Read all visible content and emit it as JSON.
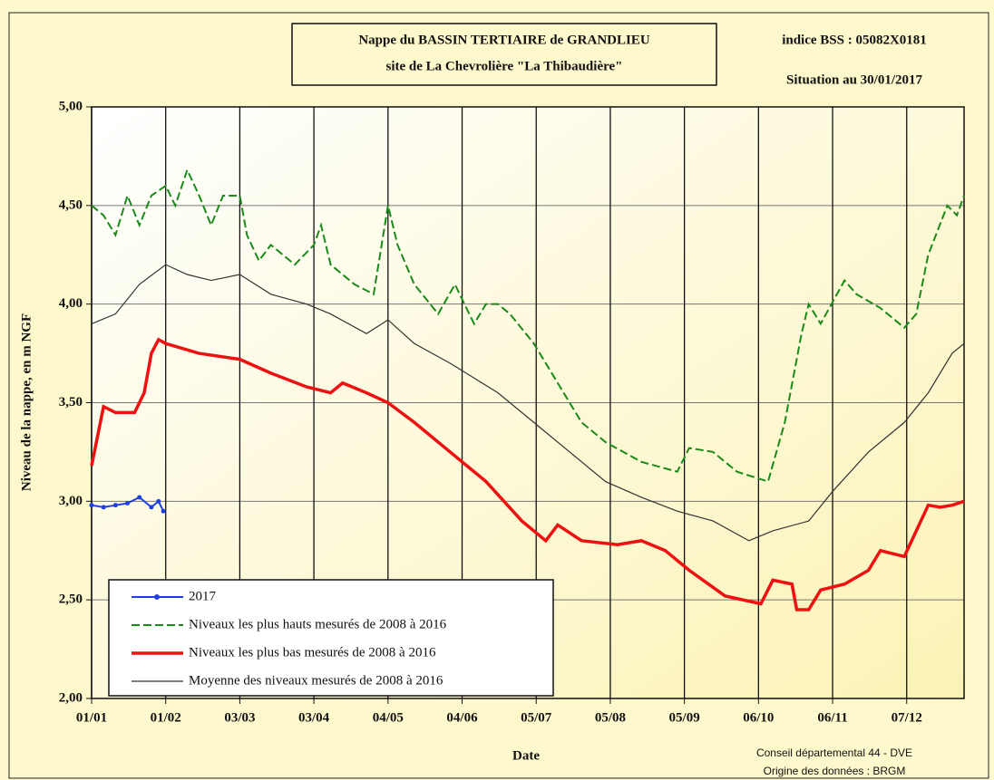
{
  "chart_data": {
    "type": "line",
    "title_lines": [
      "Nappe du BASSIN TERTIAIRE de GRANDLIEU",
      "site de La Chevrolière \"La Thibaudière\""
    ],
    "station": "indice BSS : 05082X0181",
    "situation": "Situation au 30/01/2017",
    "y_label": "Niveau de la nappe, en m NGF",
    "x_label": "Date",
    "credits": [
      "Conseil départemental 44 - DVE",
      "Origine des données : BRGM"
    ],
    "xlim": [
      0,
      365
    ],
    "xticks": [
      {
        "value": 0,
        "label": "01/01"
      },
      {
        "value": 31,
        "label": "01/02"
      },
      {
        "value": 62,
        "label": "03/03"
      },
      {
        "value": 93,
        "label": "03/04"
      },
      {
        "value": 124,
        "label": "04/05"
      },
      {
        "value": 155,
        "label": "04/06"
      },
      {
        "value": 186,
        "label": "05/07"
      },
      {
        "value": 217,
        "label": "05/08"
      },
      {
        "value": 248,
        "label": "05/09"
      },
      {
        "value": 279,
        "label": "06/10"
      },
      {
        "value": 310,
        "label": "06/11"
      },
      {
        "value": 341,
        "label": "07/12"
      }
    ],
    "ylim": [
      2,
      5
    ],
    "yticks": [
      {
        "value": 2,
        "label": "2,00"
      },
      {
        "value": 2.5,
        "label": "2,50"
      },
      {
        "value": 3,
        "label": "3,00"
      },
      {
        "value": 3.5,
        "label": "3,50"
      },
      {
        "value": 4,
        "label": "4,00"
      },
      {
        "value": 4.5,
        "label": "4,50"
      },
      {
        "value": 5,
        "label": "5,00"
      }
    ],
    "grid": true,
    "series": [
      {
        "name": "2017",
        "color": "#1f3fe0",
        "style": "solid",
        "width": 2,
        "marker": true,
        "x": [
          0,
          5,
          10,
          15,
          20,
          25,
          28,
          30
        ],
        "values": [
          2.98,
          2.97,
          2.98,
          2.99,
          3.02,
          2.97,
          3.0,
          2.95
        ]
      },
      {
        "name": "Niveaux les plus hauts mesurés de 2008 à 2016",
        "color": "#1a8a1a",
        "style": "dashed",
        "width": 2,
        "marker": false,
        "x": [
          0,
          5,
          10,
          15,
          20,
          25,
          31,
          35,
          40,
          45,
          50,
          55,
          62,
          65,
          70,
          75,
          80,
          85,
          93,
          96,
          100,
          110,
          118,
          124,
          128,
          135,
          145,
          152,
          160,
          165,
          170,
          175,
          185,
          195,
          205,
          215,
          230,
          245,
          250,
          260,
          270,
          283,
          290,
          297,
          300,
          305,
          315,
          320,
          330,
          340,
          345,
          350,
          358,
          362,
          365
        ],
        "values": [
          4.5,
          4.45,
          4.35,
          4.55,
          4.4,
          4.55,
          4.6,
          4.5,
          4.68,
          4.55,
          4.4,
          4.55,
          4.55,
          4.35,
          4.22,
          4.3,
          4.25,
          4.2,
          4.3,
          4.4,
          4.2,
          4.1,
          4.05,
          4.5,
          4.3,
          4.1,
          3.95,
          4.1,
          3.9,
          4.0,
          4.0,
          3.95,
          3.8,
          3.6,
          3.4,
          3.3,
          3.2,
          3.15,
          3.27,
          3.25,
          3.15,
          3.1,
          3.4,
          3.85,
          4.0,
          3.9,
          4.12,
          4.05,
          3.98,
          3.88,
          3.95,
          4.25,
          4.5,
          4.45,
          4.55
        ]
      },
      {
        "name": "Niveaux les plus bas mesurés de 2008 à 2016",
        "color": "#ee1111",
        "style": "solid",
        "width": 3.5,
        "marker": false,
        "x": [
          0,
          5,
          10,
          18,
          22,
          25,
          28,
          31,
          45,
          62,
          75,
          90,
          100,
          105,
          115,
          124,
          135,
          150,
          165,
          180,
          190,
          195,
          205,
          220,
          230,
          240,
          250,
          265,
          280,
          285,
          293,
          295,
          300,
          305,
          315,
          325,
          330,
          340,
          345,
          350,
          355,
          360,
          365
        ],
        "values": [
          3.18,
          3.48,
          3.45,
          3.45,
          3.55,
          3.75,
          3.82,
          3.8,
          3.75,
          3.72,
          3.65,
          3.58,
          3.55,
          3.6,
          3.55,
          3.5,
          3.4,
          3.25,
          3.1,
          2.9,
          2.8,
          2.88,
          2.8,
          2.78,
          2.8,
          2.75,
          2.65,
          2.52,
          2.48,
          2.6,
          2.58,
          2.45,
          2.45,
          2.55,
          2.58,
          2.65,
          2.75,
          2.72,
          2.85,
          2.98,
          2.97,
          2.98,
          3.0
        ]
      },
      {
        "name": "Moyenne des niveaux mesurés de 2008 à 2016",
        "color": "#333333",
        "style": "solid",
        "width": 1.2,
        "marker": false,
        "x": [
          0,
          10,
          20,
          31,
          40,
          50,
          62,
          75,
          90,
          100,
          115,
          124,
          135,
          150,
          170,
          185,
          200,
          215,
          230,
          245,
          260,
          275,
          285,
          300,
          310,
          325,
          340,
          350,
          360,
          365
        ],
        "values": [
          3.9,
          3.95,
          4.1,
          4.2,
          4.15,
          4.12,
          4.15,
          4.05,
          4.0,
          3.95,
          3.85,
          3.92,
          3.8,
          3.7,
          3.55,
          3.4,
          3.25,
          3.1,
          3.02,
          2.95,
          2.9,
          2.8,
          2.85,
          2.9,
          3.05,
          3.25,
          3.4,
          3.55,
          3.75,
          3.8
        ]
      }
    ]
  }
}
